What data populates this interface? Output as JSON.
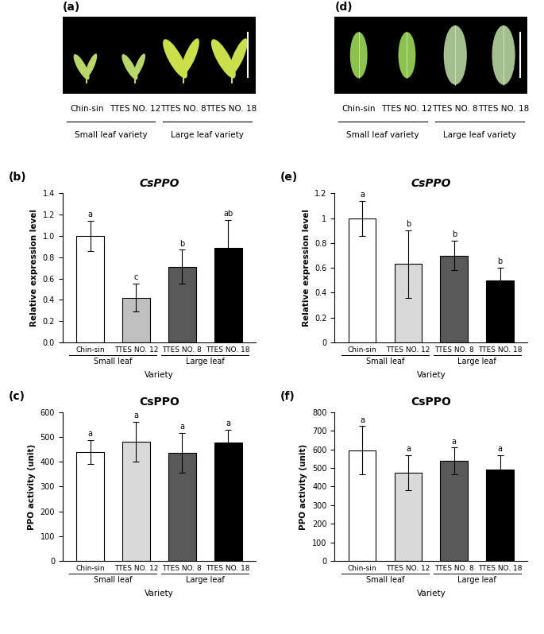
{
  "image_panels": [
    {
      "panel_label": "(a)",
      "varieties": [
        "Chin-sin",
        "TTES NO. 12",
        "TTES NO. 8",
        "TTES NO. 18"
      ],
      "groups": [
        "Small leaf variety",
        "Small leaf variety",
        "Large leaf variety",
        "Large leaf variety"
      ]
    },
    {
      "panel_label": "(d)",
      "varieties": [
        "Chin-sin",
        "TTES NO. 12",
        "TTES NO. 8",
        "TTES NO. 18"
      ],
      "groups": [
        "Small leaf variety",
        "Small leaf variety",
        "Large leaf variety",
        "Large leaf variety"
      ]
    }
  ],
  "chart_data": [
    {
      "type": "bar",
      "panel_label": "(b)",
      "title": "CsPPO",
      "ylabel": "Relative expression level",
      "xlabel": "Variety",
      "categories": [
        "Chin-sin",
        "TTES NO. 12",
        "TTES NO. 8",
        "TTES NO. 18"
      ],
      "groups": [
        "Small leaf",
        "Small leaf",
        "Large leaf",
        "Large leaf"
      ],
      "values": [
        1.0,
        0.42,
        0.71,
        0.89
      ],
      "errors": [
        0.14,
        0.13,
        0.16,
        0.26
      ],
      "significance": [
        "a",
        "c",
        "b",
        "ab"
      ],
      "colors": [
        "#ffffff",
        "#c0c0c0",
        "#595959",
        "#000000"
      ],
      "ylim": [
        0,
        1.4
      ],
      "yticks": [
        {
          "value": 0,
          "label": "0.0"
        },
        0.2,
        0.4,
        0.6,
        0.8,
        {
          "value": 1,
          "label": "1.0"
        },
        1.2,
        1.4
      ]
    },
    {
      "type": "bar",
      "panel_label": "(c)",
      "title": "CsPPO",
      "ylabel": "PPO activity (unit)",
      "xlabel": "Variety",
      "categories": [
        "Chin-sin",
        "TTES NO. 12",
        "TTES NO. 8",
        "TTES NO. 18"
      ],
      "groups": [
        "Small leaf",
        "Small leaf",
        "Large leaf",
        "Large leaf"
      ],
      "values": [
        440,
        482,
        435,
        477
      ],
      "errors": [
        48,
        80,
        80,
        52
      ],
      "significance": [
        "a",
        "a",
        "a",
        "a"
      ],
      "colors": [
        "#ffffff",
        "#d9d9d9",
        "#595959",
        "#000000"
      ],
      "ylim": [
        0,
        600
      ],
      "yticks": [
        0,
        100,
        200,
        300,
        400,
        500,
        600
      ]
    },
    {
      "type": "bar",
      "panel_label": "(e)",
      "title": "CsPPO",
      "ylabel": "Relative expression level",
      "xlabel": "Variety",
      "categories": [
        "Chin-sin",
        "TTES NO. 12",
        "TTES NO. 8",
        "TTES NO. 18"
      ],
      "groups": [
        "Small leaf",
        "Small leaf",
        "Large leaf",
        "Large leaf"
      ],
      "values": [
        1.0,
        0.63,
        0.7,
        0.5
      ],
      "errors": [
        0.14,
        0.27,
        0.12,
        0.1
      ],
      "significance": [
        "a",
        "b",
        "b",
        "b"
      ],
      "colors": [
        "#ffffff",
        "#d9d9d9",
        "#595959",
        "#000000"
      ],
      "ylim": [
        0,
        1.2
      ],
      "yticks": [
        0,
        0.2,
        0.4,
        0.6,
        0.8,
        1,
        1.2
      ]
    },
    {
      "type": "bar",
      "panel_label": "(f)",
      "title": "CsPPO",
      "ylabel": "PPO activity (unit)",
      "xlabel": "Variety",
      "categories": [
        "Chin-sin",
        "TTES NO. 12",
        "TTES NO. 8",
        "TTES NO. 18"
      ],
      "groups": [
        "Small leaf",
        "Small leaf",
        "Large leaf",
        "Large leaf"
      ],
      "values": [
        595,
        475,
        537,
        493
      ],
      "errors": [
        130,
        95,
        72,
        75
      ],
      "significance": [
        "a",
        "a",
        "a",
        "a"
      ],
      "colors": [
        "#ffffff",
        "#d9d9d9",
        "#595959",
        "#000000"
      ],
      "ylim": [
        0,
        800
      ],
      "yticks": [
        0,
        100,
        200,
        300,
        400,
        500,
        600,
        700,
        800
      ]
    }
  ]
}
